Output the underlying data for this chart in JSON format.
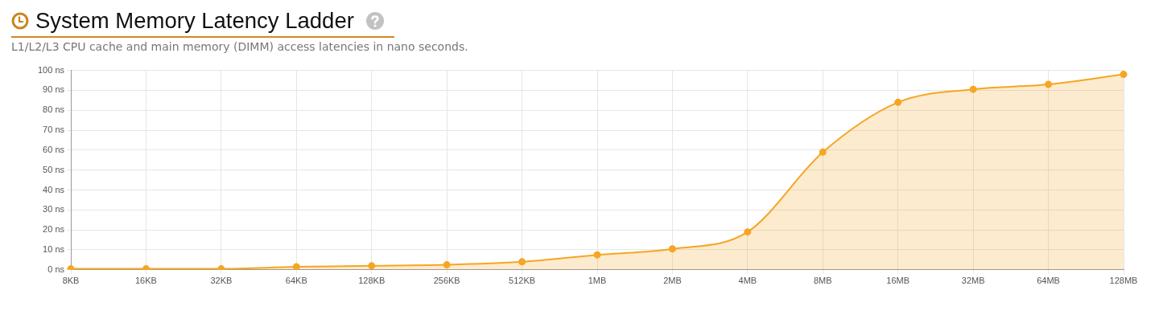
{
  "chart_data": {
    "type": "area",
    "title": "System Memory Latency Ladder",
    "subtitle": "L1/L2/L3 CPU cache and main memory (DIMM) access latencies in nano seconds.",
    "categories": [
      "8KB",
      "16KB",
      "32KB",
      "64KB",
      "128KB",
      "256KB",
      "512KB",
      "1MB",
      "2MB",
      "4MB",
      "8MB",
      "16MB",
      "32MB",
      "64MB",
      "128MB"
    ],
    "values": [
      0.5,
      0.5,
      0.5,
      1.5,
      2,
      2.5,
      4,
      7.5,
      10.5,
      19,
      59,
      84,
      90.5,
      93,
      98
    ],
    "color": "#f5a623",
    "ylim": [
      0,
      100
    ],
    "yticks": [
      {
        "value": 0,
        "label": "0 ns"
      },
      {
        "value": 10,
        "label": "10 ns"
      },
      {
        "value": 20,
        "label": "20 ns"
      },
      {
        "value": 30,
        "label": "30 ns"
      },
      {
        "value": 40,
        "label": "40 ns"
      },
      {
        "value": 50,
        "label": "50 ns"
      },
      {
        "value": 60,
        "label": "60 ns"
      },
      {
        "value": 70,
        "label": "70 ns"
      },
      {
        "value": 80,
        "label": "80 ns"
      },
      {
        "value": 90,
        "label": "90 ns"
      },
      {
        "value": 100,
        "label": "100 ns"
      }
    ],
    "grid": true,
    "marker": "circle"
  }
}
